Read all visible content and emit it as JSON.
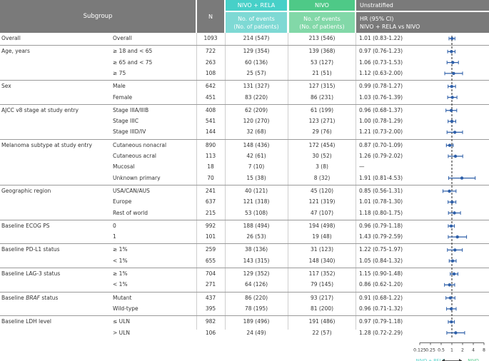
{
  "header": {
    "subgroup": "Subgroup",
    "n": "N",
    "arm_a": "NIVO + RELA",
    "arm_b": "NIVO",
    "events_a": [
      "No. of events",
      "(No. of patients)"
    ],
    "events_b": [
      "No. of events",
      "(No. of patients)"
    ],
    "unstratified": "Unstratified",
    "hr_lines": [
      "HR (95% CI)",
      "NIVO + RELA vs NIVO"
    ]
  },
  "chart_data": {
    "type": "forest",
    "x_scale": "log2",
    "xlim": [
      0.125,
      8
    ],
    "reference_line": 1,
    "ticks": [
      "0.125",
      "0.25",
      "0.5",
      "1",
      "2",
      "4",
      "8"
    ],
    "favors_left": "NIVO + RELA",
    "favors_right": "NIVO",
    "colors": {
      "point": "#2e5fa8",
      "reference": "#222222",
      "favors_left": "#47d0c8",
      "favors_right": "#4ec987"
    },
    "rows": [
      {
        "group": "Overall",
        "level": "Overall",
        "n": "1093",
        "events_a": "214 (547)",
        "events_b": "213 (546)",
        "hr_text": "1.01 (0.83-1.22)",
        "hr": 1.01,
        "lo": 0.83,
        "hi": 1.22,
        "sep": true
      },
      {
        "group": "Age, years",
        "level": "≥ 18 and < 65",
        "n": "722",
        "events_a": "129 (354)",
        "events_b": "139 (368)",
        "hr_text": "0.97 (0.76-1.23)",
        "hr": 0.97,
        "lo": 0.76,
        "hi": 1.23,
        "sep": true
      },
      {
        "group": "",
        "level": "≥ 65 and < 75",
        "n": "263",
        "events_a": "60 (136)",
        "events_b": "53 (127)",
        "hr_text": "1.06 (0.73-1.53)",
        "hr": 1.06,
        "lo": 0.73,
        "hi": 1.53
      },
      {
        "group": "",
        "level": "≥ 75",
        "n": "108",
        "events_a": "25 (57)",
        "events_b": "21 (51)",
        "hr_text": "1.12 (0.63-2.00)",
        "hr": 1.12,
        "lo": 0.63,
        "hi": 2.0
      },
      {
        "group": "Sex",
        "level": "Male",
        "n": "642",
        "events_a": "131 (327)",
        "events_b": "127 (315)",
        "hr_text": "0.99 (0.78-1.27)",
        "hr": 0.99,
        "lo": 0.78,
        "hi": 1.27,
        "sep": true
      },
      {
        "group": "",
        "level": "Female",
        "n": "451",
        "events_a": "83 (220)",
        "events_b": "86 (231)",
        "hr_text": "1.03 (0.76-1.39)",
        "hr": 1.03,
        "lo": 0.76,
        "hi": 1.39
      },
      {
        "group": "AJCC v8 stage at study entry",
        "level": "Stage IIIA/IIIB",
        "n": "408",
        "events_a": "62 (209)",
        "events_b": "61 (199)",
        "hr_text": "0.96 (0.68-1.37)",
        "hr": 0.96,
        "lo": 0.68,
        "hi": 1.37,
        "sep": true
      },
      {
        "group": "",
        "level": "Stage IIIC",
        "n": "541",
        "events_a": "120 (270)",
        "events_b": "123 (271)",
        "hr_text": "1.00 (0.78-1.29)",
        "hr": 1.0,
        "lo": 0.78,
        "hi": 1.29
      },
      {
        "group": "",
        "level": "Stage IIID/IV",
        "n": "144",
        "events_a": "32 (68)",
        "events_b": "29 (76)",
        "hr_text": "1.21 (0.73-2.00)",
        "hr": 1.21,
        "lo": 0.73,
        "hi": 2.0
      },
      {
        "group": "Melanoma subtype at study entry",
        "level": "Cutaneous nonacral",
        "n": "890",
        "events_a": "148 (436)",
        "events_b": "172 (454)",
        "hr_text": "0.87 (0.70-1.09)",
        "hr": 0.87,
        "lo": 0.7,
        "hi": 1.09,
        "sep": true
      },
      {
        "group": "",
        "level": "Cutaneous acral",
        "n": "113",
        "events_a": "42 (61)",
        "events_b": "30 (52)",
        "hr_text": "1.26 (0.79-2.02)",
        "hr": 1.26,
        "lo": 0.79,
        "hi": 2.02
      },
      {
        "group": "",
        "level": "Mucosal",
        "n": "18",
        "events_a": "7 (10)",
        "events_b": "3 (8)",
        "hr_text": "—",
        "hr": null,
        "lo": null,
        "hi": null
      },
      {
        "group": "",
        "level": "Unknown primary",
        "n": "70",
        "events_a": "15 (38)",
        "events_b": "8 (32)",
        "hr_text": "1.91 (0.81-4.53)",
        "hr": 1.91,
        "lo": 0.81,
        "hi": 4.53
      },
      {
        "group": "Geographic region",
        "level": "USA/CAN/AUS",
        "n": "241",
        "events_a": "40 (121)",
        "events_b": "45 (120)",
        "hr_text": "0.85 (0.56-1.31)",
        "hr": 0.85,
        "lo": 0.56,
        "hi": 1.31,
        "sep": true
      },
      {
        "group": "",
        "level": "Europe",
        "n": "637",
        "events_a": "121 (318)",
        "events_b": "121 (319)",
        "hr_text": "1.01 (0.78-1.30)",
        "hr": 1.01,
        "lo": 0.78,
        "hi": 1.3
      },
      {
        "group": "",
        "level": "Rest of world",
        "n": "215",
        "events_a": "53 (108)",
        "events_b": "47 (107)",
        "hr_text": "1.18 (0.80-1.75)",
        "hr": 1.18,
        "lo": 0.8,
        "hi": 1.75
      },
      {
        "group": "Baseline ECOG PS",
        "level": "0",
        "n": "992",
        "events_a": "188 (494)",
        "events_b": "194 (498)",
        "hr_text": "0.96 (0.79-1.18)",
        "hr": 0.96,
        "lo": 0.79,
        "hi": 1.18,
        "sep": true
      },
      {
        "group": "",
        "level": "1",
        "n": "101",
        "events_a": "26 (53)",
        "events_b": "19 (48)",
        "hr_text": "1.43 (0.79-2.59)",
        "hr": 1.43,
        "lo": 0.79,
        "hi": 2.59
      },
      {
        "group": "Baseline PD-L1 status",
        "level": "≥ 1%",
        "n": "259",
        "events_a": "38 (136)",
        "events_b": "31 (123)",
        "hr_text": "1.22 (0.75-1.97)",
        "hr": 1.22,
        "lo": 0.75,
        "hi": 1.97,
        "sep": true
      },
      {
        "group": "",
        "level": "< 1%",
        "n": "655",
        "events_a": "143 (315)",
        "events_b": "148 (340)",
        "hr_text": "1.05 (0.84-1.32)",
        "hr": 1.05,
        "lo": 0.84,
        "hi": 1.32
      },
      {
        "group": "Baseline LAG-3 status",
        "level": "≥ 1%",
        "n": "704",
        "events_a": "129 (352)",
        "events_b": "117 (352)",
        "hr_text": "1.15 (0.90-1.48)",
        "hr": 1.15,
        "lo": 0.9,
        "hi": 1.48,
        "sep": true
      },
      {
        "group": "",
        "level": "< 1%",
        "n": "271",
        "events_a": "64 (126)",
        "events_b": "79 (145)",
        "hr_text": "0.86 (0.62-1.20)",
        "hr": 0.86,
        "lo": 0.62,
        "hi": 1.2
      },
      {
        "group": "Baseline BRAF status",
        "level": "Mutant",
        "n": "437",
        "events_a": "86 (220)",
        "events_b": "93 (217)",
        "hr_text": "0.91 (0.68-1.22)",
        "hr": 0.91,
        "lo": 0.68,
        "hi": 1.22,
        "sep": true
      },
      {
        "group": "",
        "level": "Wild-type",
        "n": "395",
        "events_a": "78 (195)",
        "events_b": "81 (200)",
        "hr_text": "0.96 (0.71-1.32)",
        "hr": 0.96,
        "lo": 0.71,
        "hi": 1.32
      },
      {
        "group": "Baseline LDH level",
        "level": "≤ ULN",
        "n": "982",
        "events_a": "189 (496)",
        "events_b": "191 (486)",
        "hr_text": "0.97 (0.79-1.18)",
        "hr": 0.97,
        "lo": 0.79,
        "hi": 1.18,
        "sep": true
      },
      {
        "group": "",
        "level": "> ULN",
        "n": "106",
        "events_a": "24 (49)",
        "events_b": "22 (57)",
        "hr_text": "1.28 (0.72-2.29)",
        "hr": 1.28,
        "lo": 0.72,
        "hi": 2.29
      }
    ]
  }
}
